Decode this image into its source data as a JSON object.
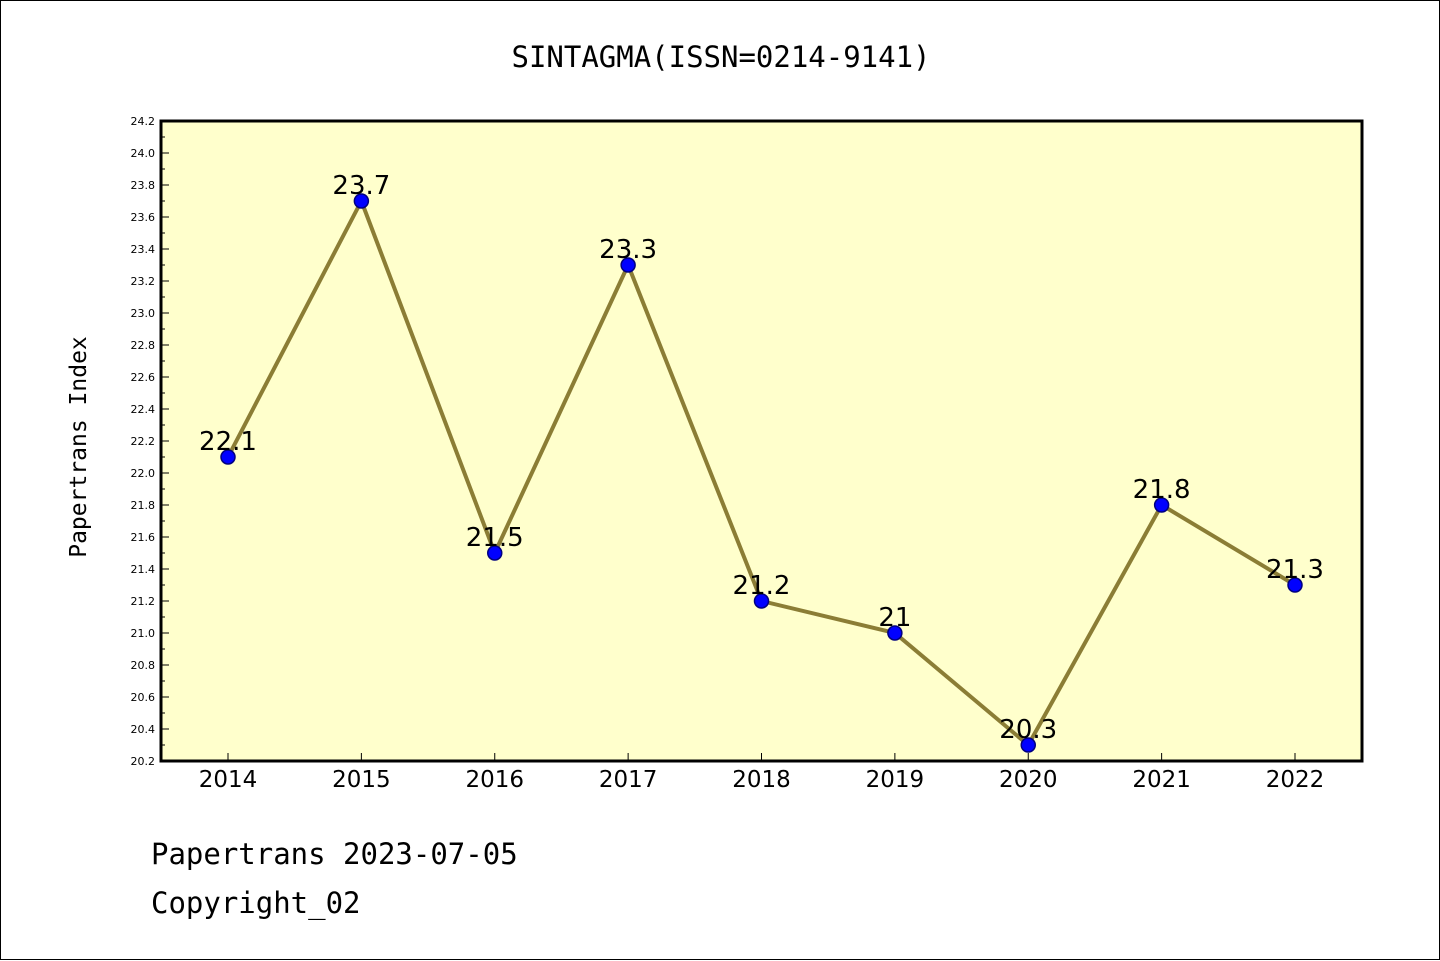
{
  "chart_data": {
    "type": "line",
    "title": "SINTAGMA(ISSN=0214-9141)",
    "xlabel": "",
    "ylabel": "Papertrans Index",
    "categories": [
      "2014",
      "2015",
      "2016",
      "2017",
      "2018",
      "2019",
      "2020",
      "2021",
      "2022"
    ],
    "series": [
      {
        "values": [
          22.1,
          23.7,
          21.5,
          23.3,
          21.2,
          21.0,
          20.3,
          21.8,
          21.3
        ],
        "data_labels": [
          "22.1",
          "23.7",
          "21.5",
          "23.3",
          "21.2",
          "21",
          "20.3",
          "21.8",
          "21.3"
        ]
      }
    ],
    "ylim": [
      20.2,
      24.2
    ],
    "yticks": [
      "20.2",
      "20.4",
      "20.6",
      "20.8",
      "21.0",
      "21.2",
      "21.4",
      "21.6",
      "21.8",
      "22.0",
      "22.2",
      "22.4",
      "22.6",
      "22.8",
      "23.0",
      "23.2",
      "23.4",
      "23.6",
      "23.8",
      "24.0",
      "24.2"
    ],
    "grid": false,
    "legend": "none",
    "colors": {
      "plot_background": "#ffffcc",
      "line": "#8b7d35",
      "marker_fill": "#0000ff",
      "marker_stroke": "#000080",
      "axis": "#000000"
    }
  },
  "footer": {
    "date_line": "Papertrans 2023-07-05",
    "copyright": "Copyright_02"
  }
}
